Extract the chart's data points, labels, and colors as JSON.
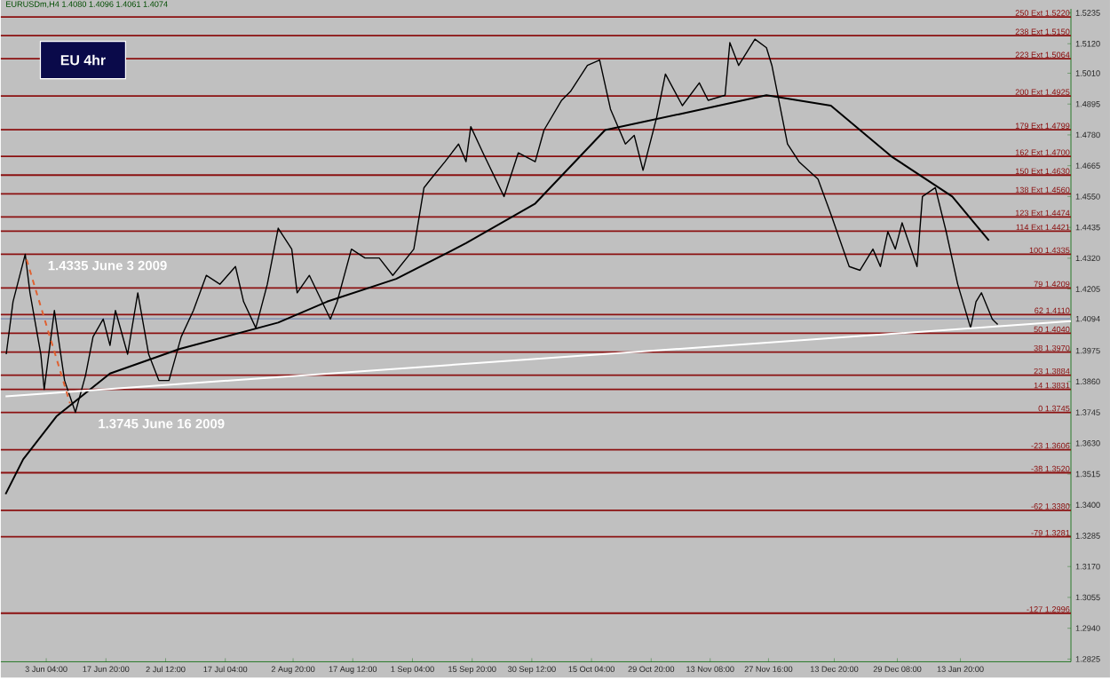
{
  "chart_data": {
    "type": "line",
    "title": "EU 4hr",
    "annotations": [
      "EURUSDm,H4  1.4080 1.4096 1.4061 1.4074",
      {
        "text": "1.4335 June 3 2009",
        "x": "2009-05-29T00:00",
        "y": 1.4335
      },
      {
        "text": "1.3745  June 16 2009",
        "x": "2009-06-10T08:00",
        "y": 1.3745
      }
    ],
    "xlim": [
      "2009-05-23T00:00",
      "2010-02-10T00:00"
    ],
    "ylim": [
      1.2815,
      1.525
    ],
    "xticks": [
      {
        "value": "2009-06-03T04:00",
        "label": "3 Jun 04:00"
      },
      {
        "value": "2009-06-17T20:00",
        "label": "17 Jun 20:00"
      },
      {
        "value": "2009-07-02T12:00",
        "label": "2 Jul 12:00"
      },
      {
        "value": "2009-07-17T04:00",
        "label": "17 Jul 04:00"
      },
      {
        "value": "2009-08-02T20:00",
        "label": "2 Aug 20:00"
      },
      {
        "value": "2009-08-17T12:00",
        "label": "17 Aug 12:00"
      },
      {
        "value": "2009-09-01T04:00",
        "label": "1 Sep 04:00"
      },
      {
        "value": "2009-09-15T20:00",
        "label": "15 Sep 20:00"
      },
      {
        "value": "2009-09-30T12:00",
        "label": "30 Sep 12:00"
      },
      {
        "value": "2009-10-15T04:00",
        "label": "15 Oct 04:00"
      },
      {
        "value": "2009-10-29T20:00",
        "label": "29 Oct 20:00"
      },
      {
        "value": "2009-11-13T08:00",
        "label": "13 Nov 08:00"
      },
      {
        "value": "2009-11-27T16:00",
        "label": "27 Nov 16:00"
      },
      {
        "value": "2009-12-13T20:00",
        "label": "13 Dec 20:00"
      },
      {
        "value": "2009-12-29T08:00",
        "label": "29 Dec 08:00"
      },
      {
        "value": "2010-01-13T20:00",
        "label": "13 Jan 20:00"
      }
    ],
    "yticks": [
      1.5235,
      {
        "value": 1.512,
        "label": "1.5120"
      },
      {
        "value": 1.501,
        "label": "1.5010"
      },
      1.4895,
      {
        "value": 1.478,
        "label": "1.4780"
      },
      1.4665,
      {
        "value": 1.455,
        "label": "1.4550"
      },
      1.4435,
      {
        "value": 1.432,
        "label": "1.4320"
      },
      1.4205,
      1.4094,
      1.3975,
      {
        "value": 1.386,
        "label": "1.3860"
      },
      1.3745,
      {
        "value": 1.363,
        "label": "1.3630"
      },
      1.3515,
      {
        "value": 1.34,
        "label": "1.3400"
      },
      1.3285,
      {
        "value": 1.317,
        "label": "1.3170"
      },
      1.3055,
      {
        "value": 1.294,
        "label": "1.2940"
      },
      1.2825
    ],
    "ref_lines": [
      {
        "axis": "y",
        "value": 1.522,
        "label": "250 Ext 1.5220",
        "color": "#8b1010"
      },
      {
        "axis": "y",
        "value": 1.515,
        "label": "238 Ext 1.5150",
        "color": "#8b1010"
      },
      {
        "axis": "y",
        "value": 1.5064,
        "label": "223 Ext 1.5064",
        "color": "#8b1010"
      },
      {
        "axis": "y",
        "value": 1.4925,
        "label": "200 Ext 1.4925",
        "color": "#8b1010"
      },
      {
        "axis": "y",
        "value": 1.4799,
        "label": "179 Ext 1.4799",
        "color": "#8b1010"
      },
      {
        "axis": "y",
        "value": 1.47,
        "label": "162 Ext 1.4700",
        "color": "#8b1010"
      },
      {
        "axis": "y",
        "value": 1.463,
        "label": "150 Ext 1.4630",
        "color": "#8b1010"
      },
      {
        "axis": "y",
        "value": 1.456,
        "label": "138 Ext 1.4560",
        "color": "#8b1010"
      },
      {
        "axis": "y",
        "value": 1.4474,
        "label": "123 Ext 1.4474",
        "color": "#8b1010"
      },
      {
        "axis": "y",
        "value": 1.4421,
        "label": "114 Ext 1.4421",
        "color": "#8b1010"
      },
      {
        "axis": "y",
        "value": 1.4335,
        "label": "100 1.4335",
        "color": "#8b1010"
      },
      {
        "axis": "y",
        "value": 1.4209,
        "label": "79 1.4209",
        "color": "#8b1010"
      },
      {
        "axis": "y",
        "value": 1.411,
        "label": "62 1.4110",
        "color": "#8b1010"
      },
      {
        "axis": "y",
        "value": 1.4094,
        "color": "#8a96b4"
      },
      {
        "axis": "y",
        "value": 1.404,
        "label": "50 1.4040",
        "color": "#8b1010"
      },
      {
        "axis": "y",
        "value": 1.397,
        "label": "38 1.3970",
        "color": "#8b1010"
      },
      {
        "axis": "y",
        "value": 1.3884,
        "label": "23 1.3884",
        "color": "#8b1010"
      },
      {
        "axis": "y",
        "value": 1.3831,
        "label": "14 1.3831",
        "color": "#8b1010"
      },
      {
        "axis": "y",
        "value": 1.3745,
        "label": "0 1.3745",
        "color": "#8b1010"
      },
      {
        "axis": "y",
        "value": 1.3606,
        "label": "-23 1.3606",
        "color": "#8b1010"
      },
      {
        "axis": "y",
        "value": 1.352,
        "label": "-38 1.3520",
        "color": "#8b1010"
      },
      {
        "axis": "y",
        "value": 1.338,
        "label": "-62 1.3380",
        "color": "#8b1010"
      },
      {
        "axis": "y",
        "value": 1.3281,
        "label": "-79 1.3281",
        "color": "#8b1010"
      },
      {
        "axis": "y",
        "value": 1.2996,
        "label": "-127 1.2996",
        "color": "#8b1010"
      }
    ],
    "series": [
      {
        "color": "#000000",
        "x": [
          "2009-05-24T08:00",
          "2009-05-26T00:00",
          "2009-05-29T00:00",
          "2009-05-30T04:00",
          "2009-06-01T20:00",
          "2009-06-02T16:00",
          "2009-06-05T04:00",
          "2009-06-07T16:00",
          "2009-06-10T08:00",
          "2009-06-12T20:00",
          "2009-06-14T16:00",
          "2009-06-17T04:00",
          "2009-06-18T20:00",
          "2009-06-20T04:00",
          "2009-06-23T04:00",
          "2009-06-25T16:00",
          "2009-06-28T08:00",
          "2009-06-30T20:00",
          "2009-07-03T08:00",
          "2009-07-06T08:00",
          "2009-07-09T08:00",
          "2009-07-12T12:00",
          "2009-07-15T20:00",
          "2009-07-19T16:00",
          "2009-07-21T16:00",
          "2009-07-24T16:00",
          "2009-07-27T12:00",
          "2009-07-30T04:00",
          "2009-08-02T12:00",
          "2009-08-03T20:00",
          "2009-08-06T20:00",
          "2009-08-12T00:00",
          "2009-08-13T16:00",
          "2009-08-17T04:00",
          "2009-08-20T12:00",
          "2009-08-24T00:00",
          "2009-08-27T08:00",
          "2009-09-01T12:00",
          "2009-09-04T00:00",
          "2009-09-05T16:00",
          "2009-09-09T04:00",
          "2009-09-12T12:00",
          "2009-09-14T08:00",
          "2009-09-15T12:00",
          "2009-09-18T12:00",
          "2009-09-23T16:00",
          "2009-09-27T04:00",
          "2009-10-01T08:00",
          "2009-10-03T12:00",
          "2009-10-07T20:00",
          "2009-10-10T00:00",
          "2009-10-14T04:00",
          "2009-10-17T04:00",
          "2009-10-19T20:00",
          "2009-10-23T12:00",
          "2009-10-25T16:00",
          "2009-10-27T20:00",
          "2009-10-31T04:00",
          "2009-11-02T08:00",
          "2009-11-06T12:00",
          "2009-11-10T16:00",
          "2009-11-12T20:00",
          "2009-11-17T00:00",
          "2009-11-18T04:00",
          "2009-11-20T08:00",
          "2009-11-24T08:00",
          "2009-11-27T04:00",
          "2009-11-28T12:00",
          "2009-12-02T08:00",
          "2009-12-05T04:00",
          "2009-12-09T20:00",
          "2009-12-13T00:00",
          "2009-12-17T12:00",
          "2009-12-20T04:00",
          "2009-12-23T08:00",
          "2009-12-25T04:00",
          "2009-12-27T00:00",
          "2009-12-28T20:00",
          "2009-12-30T12:00",
          "2010-01-03T04:00",
          "2010-01-04T12:00",
          "2010-01-07T16:00",
          "2010-01-10T08:00",
          "2010-01-13T04:00",
          "2010-01-16T08:00",
          "2010-01-17T16:00",
          "2010-01-19T00:00",
          "2010-01-21T16:00",
          "2010-01-23T00:00"
        ],
        "values": [
          1.3962,
          1.4158,
          1.4335,
          1.4191,
          1.3962,
          1.3831,
          1.4125,
          1.3864,
          1.3745,
          1.3884,
          1.4027,
          1.4093,
          1.3995,
          1.4125,
          1.3962,
          1.4191,
          1.3962,
          1.3864,
          1.3864,
          1.4027,
          1.4125,
          1.4256,
          1.4223,
          1.4289,
          1.4158,
          1.406,
          1.4223,
          1.4432,
          1.4354,
          1.4191,
          1.4256,
          1.4093,
          1.4158,
          1.4354,
          1.4321,
          1.4321,
          1.4256,
          1.4354,
          1.4583,
          1.4615,
          1.468,
          1.4746,
          1.468,
          1.4811,
          1.4713,
          1.455,
          1.4713,
          1.468,
          1.4798,
          1.4909,
          1.4942,
          1.5039,
          1.5059,
          1.4876,
          1.4746,
          1.4778,
          1.4648,
          1.4844,
          1.5007,
          1.4889,
          1.4974,
          1.4909,
          1.4928,
          1.5124,
          1.5039,
          1.5137,
          1.5105,
          1.5039,
          1.4746,
          1.468,
          1.4615,
          1.4484,
          1.4289,
          1.4275,
          1.4354,
          1.4289,
          1.4419,
          1.4354,
          1.4452,
          1.4289,
          1.455,
          1.4583,
          1.4419,
          1.4223,
          1.406,
          1.4158,
          1.4191,
          1.4093,
          1.4073
        ]
      },
      {
        "color": "#000000",
        "x": [
          "2009-05-24T04:00",
          "2009-05-28T12:00",
          "2009-06-05T16:00",
          "2009-06-18T20:00",
          "2009-07-06T00:00",
          "2009-07-30T04:00",
          "2009-08-11T04:00",
          "2009-08-28T04:00",
          "2009-09-14T08:00",
          "2009-10-01T08:00",
          "2009-10-18T12:00",
          "2009-11-05T16:00",
          "2009-11-27T04:00",
          "2009-12-13T00:00",
          "2009-12-27T20:00",
          "2010-01-11T20:00",
          "2010-01-20T20:00"
        ],
        "values": [
          1.344,
          1.357,
          1.373,
          1.389,
          1.3982,
          1.408,
          1.4158,
          1.4243,
          1.4376,
          1.4524,
          1.4798,
          1.4857,
          1.4928,
          1.4889,
          1.47,
          1.455,
          1.4386
        ]
      },
      {
        "color": "#ffffff",
        "x": [
          "2009-05-24T04:00",
          "2010-02-10T00:00"
        ],
        "values": [
          1.3805,
          1.4085
        ]
      },
      {
        "color": "#e06030",
        "line_style": "dashed",
        "x": [
          "2009-05-29T08:00",
          "2009-06-09T00:00"
        ],
        "values": [
          1.4315,
          1.3779
        ]
      }
    ]
  }
}
